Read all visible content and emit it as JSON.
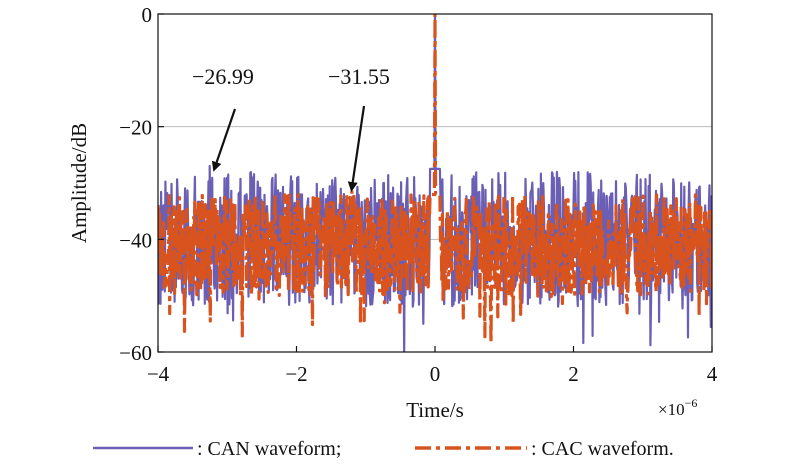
{
  "chart_data": {
    "type": "line",
    "title": "",
    "xlabel": "Time/s",
    "ylabel": "Amplitude/dB",
    "x_multiplier": "×10",
    "x_multiplier_exp": "−6",
    "xlim": [
      -4,
      4
    ],
    "ylim": [
      -60,
      0
    ],
    "x_ticks": [
      -4,
      -2,
      0,
      2,
      4
    ],
    "x_tick_labels": [
      "−4",
      "−2",
      "0",
      "2",
      "4"
    ],
    "y_ticks": [
      -60,
      -40,
      -20,
      0
    ],
    "y_tick_labels": [
      "−60",
      "−40",
      "−20",
      "0"
    ],
    "grid": "horizontal",
    "legend_placement": "bottom",
    "series": [
      {
        "name": ": CAN waveform;",
        "color": "#6a5fb5",
        "style": "solid",
        "peak_x": 0,
        "peak_y": 0,
        "max_sidelobe": -26.99,
        "max_sidelobe_x": -3.25,
        "noise_floor_mean": -40,
        "noise_floor_spread": 12
      },
      {
        "name": ": CAC waveform.",
        "color": "#d9531e",
        "style": "dashdot",
        "peak_x": 0,
        "peak_y": 0,
        "max_sidelobe": -31.55,
        "max_sidelobe_x": -1.2,
        "noise_floor_mean": -41,
        "noise_floor_spread": 9
      }
    ],
    "annotations": [
      {
        "text": "−26.99",
        "target_x": -3.25,
        "target_y": -27.0
      },
      {
        "text": "−31.55",
        "target_x": -1.2,
        "target_y": -31.5
      }
    ]
  }
}
